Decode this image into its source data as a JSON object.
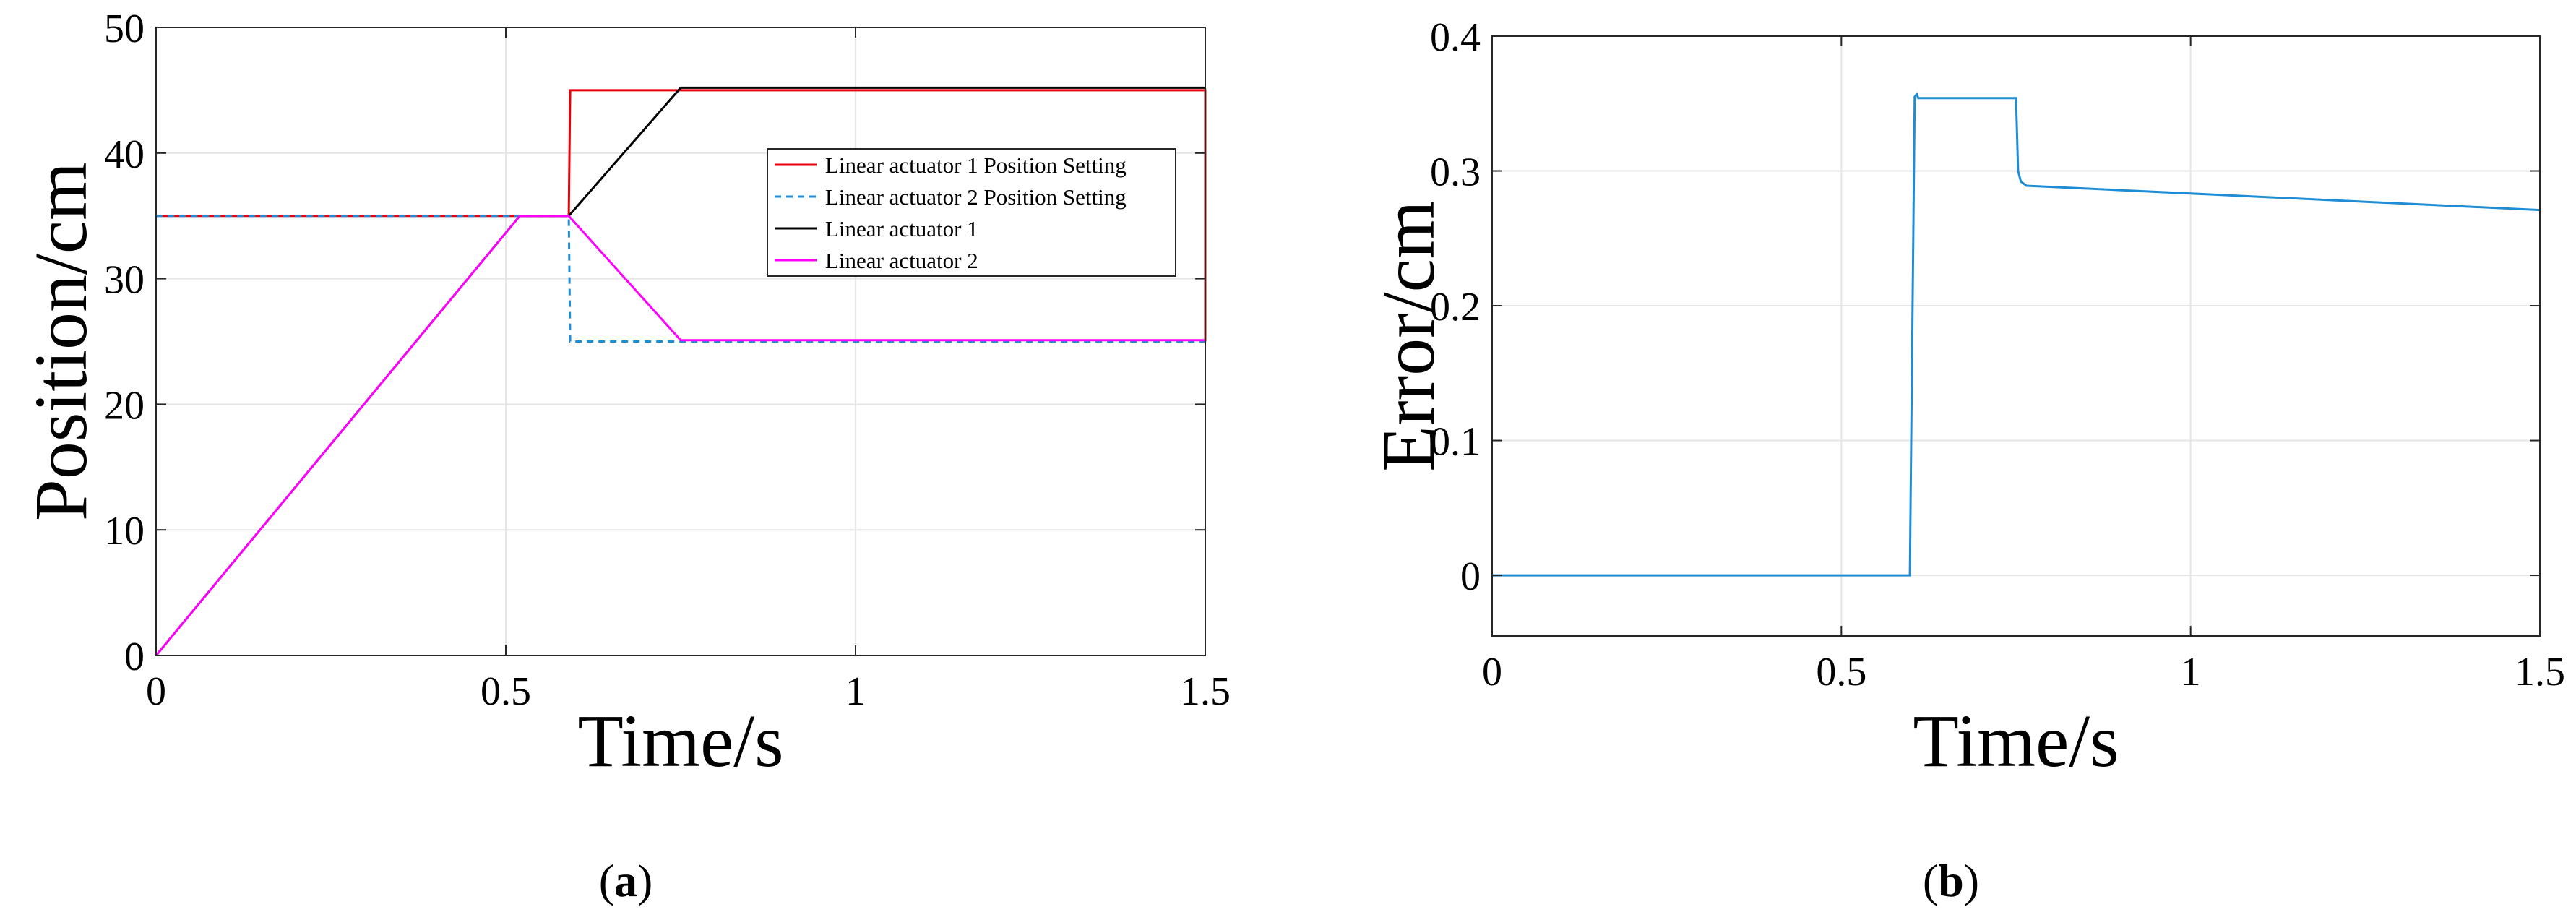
{
  "chart_data": [
    {
      "type": "line",
      "panel_label": "a",
      "xlabel": "Time/s",
      "ylabel": "Position/cm",
      "xlim": [
        0,
        1.5
      ],
      "ylim": [
        0,
        50
      ],
      "xticks": [
        0,
        0.5,
        1,
        1.5
      ],
      "xtick_labels": [
        "0",
        "0.5",
        "1",
        "1.5"
      ],
      "yticks": [
        0,
        10,
        20,
        30,
        40,
        50
      ],
      "ytick_labels": [
        "0",
        "10",
        "20",
        "30",
        "40",
        "50"
      ],
      "grid": true,
      "legend_position": "upper-right",
      "series": [
        {
          "name": "Linear actuator 1 Position Setting",
          "color": "#e8000b",
          "dash": "solid",
          "x": [
            0,
            0.59,
            0.592,
            1.5,
            1.5
          ],
          "y": [
            35,
            35,
            45,
            45,
            25
          ]
        },
        {
          "name": "Linear actuator 2 Position Setting",
          "color": "#1f8dd6",
          "dash": "dashed",
          "x": [
            0,
            0.59,
            0.592,
            1.5
          ],
          "y": [
            35,
            35,
            25,
            25
          ]
        },
        {
          "name": "Linear actuator 1",
          "color": "#000000",
          "dash": "solid",
          "x": [
            0,
            0.52,
            0.59,
            0.75,
            1.5
          ],
          "y": [
            0,
            35,
            35,
            45.2,
            45.2
          ]
        },
        {
          "name": "Linear actuator 2",
          "color": "#ff00ff",
          "dash": "solid",
          "x": [
            0,
            0.52,
            0.59,
            0.75,
            1.5
          ],
          "y": [
            0,
            35,
            35,
            25.1,
            25.1
          ]
        }
      ]
    },
    {
      "type": "line",
      "panel_label": "b",
      "xlabel": "Time/s",
      "ylabel": "Error/cm",
      "xlim": [
        0,
        1.5
      ],
      "ylim": [
        -0.045,
        0.4
      ],
      "xticks": [
        0,
        0.5,
        1,
        1.5
      ],
      "xtick_labels": [
        "0",
        "0.5",
        "1",
        "1.5"
      ],
      "yticks": [
        0,
        0.1,
        0.2,
        0.3,
        0.4
      ],
      "ytick_labels": [
        "0",
        "0.1",
        "0.2",
        "0.3",
        "0.4"
      ],
      "grid": true,
      "series": [
        {
          "color": "#1f8dd6",
          "dash": "solid",
          "x": [
            0,
            0.598,
            0.605,
            0.608,
            0.61,
            0.75,
            0.753,
            0.757,
            0.765,
            1.5
          ],
          "y": [
            0,
            0,
            0.355,
            0.357,
            0.354,
            0.354,
            0.3,
            0.292,
            0.289,
            0.271
          ]
        }
      ]
    }
  ]
}
